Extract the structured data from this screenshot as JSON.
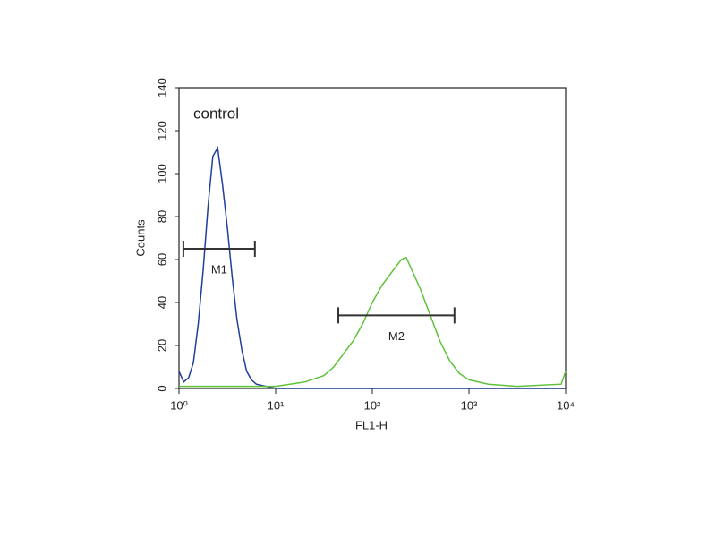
{
  "chart_data": {
    "type": "line",
    "xlabel": "FL1-H",
    "ylabel": "Counts",
    "annotation": "control",
    "xscale": "log",
    "xlim": [
      1,
      10000
    ],
    "xticks": [
      {
        "value": 1,
        "label": "10⁰"
      },
      {
        "value": 10,
        "label": "10¹"
      },
      {
        "value": 100,
        "label": "10²"
      },
      {
        "value": 1000,
        "label": "10³"
      },
      {
        "value": 10000,
        "label": "10⁴"
      }
    ],
    "ylim": [
      0,
      140
    ],
    "yticks": [
      0,
      20,
      40,
      60,
      80,
      100,
      120,
      140
    ],
    "series": [
      {
        "color": "#1f3f9a",
        "x": [
          1,
          1.12,
          1.26,
          1.41,
          1.58,
          1.78,
          2.0,
          2.24,
          2.51,
          2.82,
          3.16,
          3.55,
          3.98,
          4.47,
          5.01,
          5.62,
          6.31,
          7.94,
          10,
          100,
          10000
        ],
        "values": [
          8,
          3,
          5,
          12,
          30,
          55,
          85,
          108,
          112,
          95,
          75,
          52,
          32,
          18,
          8,
          4,
          2,
          1,
          0,
          0,
          0
        ]
      },
      {
        "color": "#5fc23a",
        "x": [
          1,
          10,
          20,
          31.6,
          39.8,
          50.1,
          63.1,
          79.4,
          100,
          126,
          158,
          200,
          224,
          251,
          316,
          398,
          501,
          631,
          794,
          1000,
          1585,
          3162,
          9000,
          10000
        ],
        "values": [
          1,
          1,
          3,
          6,
          10,
          16,
          22,
          30,
          40,
          48,
          54,
          60,
          61,
          56,
          46,
          34,
          22,
          13,
          7,
          4,
          2,
          1,
          2,
          8
        ]
      }
    ],
    "gates": [
      {
        "label": "M1",
        "x": [
          1.11,
          6.1
        ],
        "y": 65
      },
      {
        "label": "M2",
        "x": [
          44.5,
          708
        ],
        "y": 34
      }
    ]
  }
}
